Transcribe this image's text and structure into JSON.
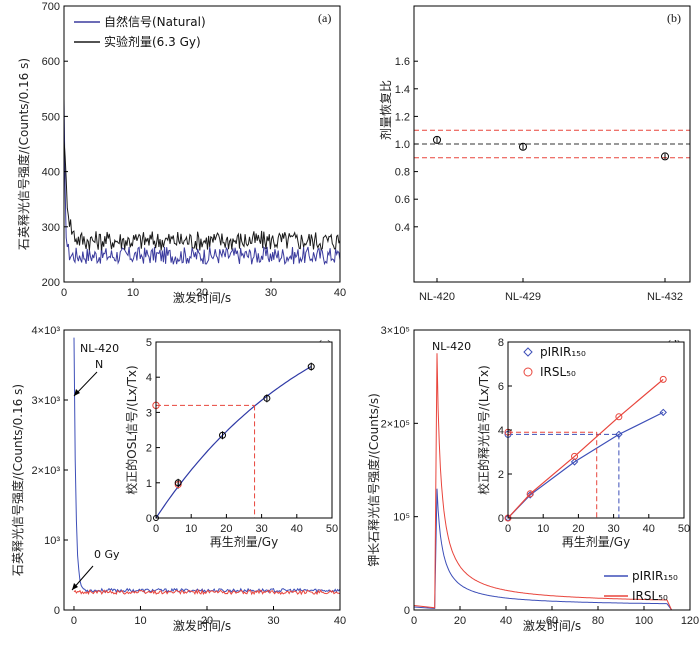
{
  "chart_data": [
    {
      "panel": "(a)",
      "type": "line",
      "xlabel": "激发时间/s",
      "ylabel": "石英释光信号强度/(Counts/0.16 s)",
      "xlim": [
        0,
        40
      ],
      "ylim": [
        200,
        700
      ],
      "xticks": [
        0,
        10,
        20,
        30,
        40
      ],
      "yticks": [
        200,
        300,
        400,
        500,
        600,
        700
      ],
      "legend_position": "top-left",
      "series": [
        {
          "name": "自然信号(Natural)",
          "color": "#3b3b9e",
          "peak": 520,
          "baseline": 248,
          "noise": 16,
          "decay": 0.18
        },
        {
          "name": "实验剂量(6.3 Gy)",
          "color": "#1a1a1a",
          "peak": 470,
          "baseline": 275,
          "noise": 18,
          "decay": 0.5
        }
      ]
    },
    {
      "panel": "(b)",
      "type": "scatter",
      "ylabel": "剂量恢复比",
      "categories": [
        "NL-420",
        "NL-429",
        "NL-432"
      ],
      "values": [
        1.03,
        0.98,
        0.91
      ],
      "errors": [
        0.02,
        0.02,
        0.02
      ],
      "ylim": [
        0,
        2.0
      ],
      "yticks": [
        0.4,
        0.6,
        0.8,
        1.0,
        1.2,
        1.4,
        1.6
      ],
      "ref_lines": [
        {
          "value": 1.0,
          "color": "#333333"
        },
        {
          "value": 1.1,
          "color": "#e8453c"
        },
        {
          "value": 0.9,
          "color": "#e8453c"
        }
      ]
    },
    {
      "panel": "(c)",
      "type": "line",
      "xlabel": "激发时间/s",
      "ylabel": "石英释光信号强度/(Counts/0.16 s)",
      "xlim": [
        -1.5,
        40
      ],
      "ylim": [
        0,
        4000
      ],
      "xticks": [
        0,
        10,
        20,
        30,
        40
      ],
      "yticks": [
        0,
        1000,
        2000,
        3000,
        4000
      ],
      "ytick_labels": [
        "0",
        "10³",
        "2×10³",
        "3×10³",
        "4×10³"
      ],
      "annotations": [
        "NL-420",
        "N",
        "0 Gy"
      ],
      "series": [
        {
          "name": "N",
          "color": "#3d4fb8",
          "peak": 3900,
          "baseline": 280,
          "noise": 25
        },
        {
          "name": "0 Gy",
          "color": "#e8453c",
          "peak": 260,
          "baseline": 255,
          "noise": 28
        }
      ],
      "inset": {
        "type": "scatter",
        "xlabel": "再生剂量/Gy",
        "ylabel": "校正的OSL信号/(Lx/Tx)",
        "xlim": [
          0,
          50
        ],
        "ylim": [
          0,
          5
        ],
        "xticks": [
          0,
          10,
          20,
          30,
          40,
          50
        ],
        "yticks": [
          0,
          1,
          2,
          3,
          4,
          5
        ],
        "points": [
          {
            "x": 6.3,
            "y": 0.95
          },
          {
            "x": 6.3,
            "y": 1.0
          },
          {
            "x": 18.9,
            "y": 2.35
          },
          {
            "x": 31.5,
            "y": 3.4
          },
          {
            "x": 44.1,
            "y": 4.3
          }
        ],
        "natural": {
          "x": 0,
          "y": 3.2
        },
        "equivalent_dose": 28.0,
        "zero_point": {
          "x": 0,
          "y": 0
        }
      }
    },
    {
      "panel": "(d)",
      "type": "line",
      "xlabel": "激发时间/s",
      "ylabel": "钾长石释光信号强度/(Counts/s)",
      "xlim": [
        0,
        120
      ],
      "ylim": [
        0,
        300000
      ],
      "xticks": [
        0,
        20,
        40,
        60,
        80,
        100,
        120
      ],
      "yticks": [
        0,
        100000,
        200000,
        300000
      ],
      "ytick_labels": [
        "0",
        "10⁵",
        "2×10⁵",
        "3×10⁵"
      ],
      "annotation": "NL-420",
      "legend_position": "bottom-right",
      "series": [
        {
          "name": "pIRIR₁₅₀",
          "color": "#3d4fb8",
          "peak": 130000,
          "peak_x": 10,
          "tail": 4000,
          "k": 0.055
        },
        {
          "name": "IRSL₅₀",
          "color": "#e8453c",
          "peak": 275000,
          "peak_x": 10,
          "tail": 6000,
          "k": 0.07
        }
      ],
      "inset": {
        "type": "scatter",
        "xlabel": "再生剂量/Gy",
        "ylabel": "校正的释光信号/(Lx/Tx)",
        "xlim": [
          0,
          50
        ],
        "ylim": [
          0,
          8
        ],
        "xticks": [
          0,
          10,
          20,
          30,
          40,
          50
        ],
        "yticks": [
          0,
          2,
          4,
          6,
          8
        ],
        "legend_position": "top-left",
        "series": [
          {
            "name": "pIRIR₁₅₀",
            "color": "#3d4fb8",
            "marker": "diamond",
            "points": [
              {
                "x": 0,
                "y": 0
              },
              {
                "x": 6.3,
                "y": 1.05
              },
              {
                "x": 18.9,
                "y": 2.55
              },
              {
                "x": 31.5,
                "y": 3.8
              },
              {
                "x": 44.1,
                "y": 4.8
              }
            ],
            "natural": {
              "x": 0,
              "y": 3.8
            },
            "equivalent_dose": 31.5
          },
          {
            "name": "IRSL₅₀",
            "color": "#e8453c",
            "marker": "circle",
            "points": [
              {
                "x": 0,
                "y": 0
              },
              {
                "x": 6.3,
                "y": 1.1
              },
              {
                "x": 18.9,
                "y": 2.8
              },
              {
                "x": 31.5,
                "y": 4.6
              },
              {
                "x": 44.1,
                "y": 6.3
              }
            ],
            "natural": {
              "x": 0,
              "y": 3.9
            },
            "equivalent_dose": 25.2
          }
        ]
      }
    }
  ]
}
